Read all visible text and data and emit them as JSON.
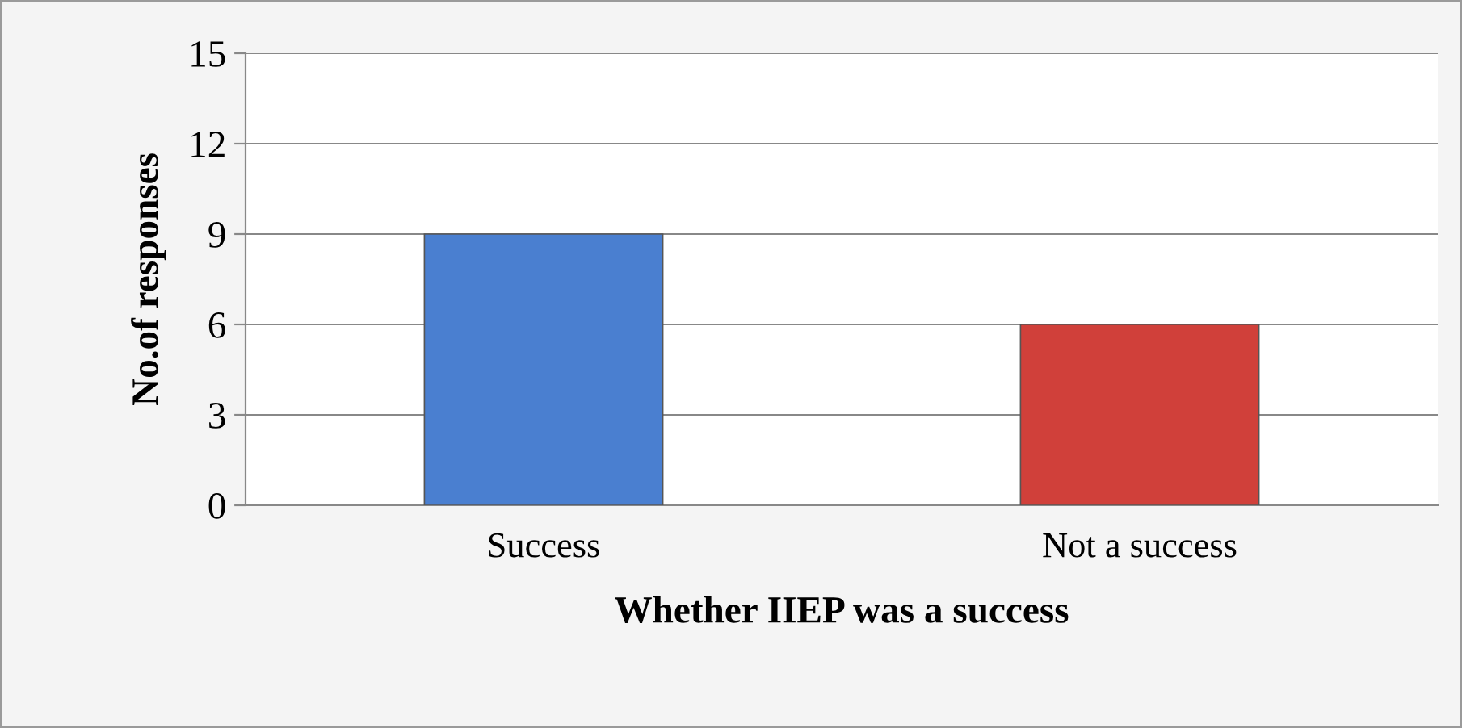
{
  "chart_data": {
    "type": "bar",
    "xlabel": "Whether IIEP was a success",
    "ylabel": "No.of responses",
    "categories": [
      "Success",
      "Not a success"
    ],
    "values": [
      9,
      6
    ],
    "colors": [
      "#4a7fd0",
      "#d0403a"
    ],
    "ylim": [
      0,
      15
    ],
    "yticks": [
      0,
      3,
      6,
      9,
      12,
      15
    ],
    "grid": "y"
  }
}
